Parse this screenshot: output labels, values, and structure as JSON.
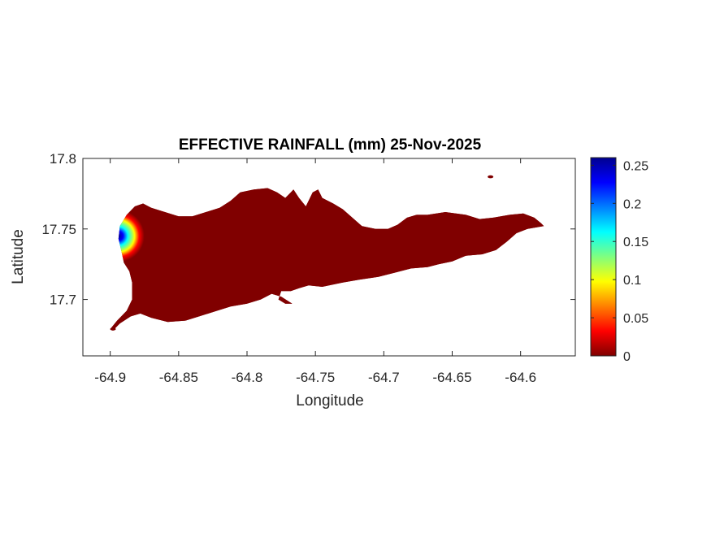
{
  "chart_data": {
    "type": "heatmap",
    "title": "EFFECTIVE RAINFALL (mm) 25-Nov-2025",
    "xlabel": "Longitude",
    "ylabel": "Latitude",
    "xlim": [
      -64.92,
      -64.56
    ],
    "ylim": [
      17.66,
      17.8
    ],
    "x_ticks": [
      {
        "value": -64.9,
        "label": "-64.9"
      },
      {
        "value": -64.85,
        "label": "-64.85"
      },
      {
        "value": -64.8,
        "label": "-64.8"
      },
      {
        "value": -64.75,
        "label": "-64.75"
      },
      {
        "value": -64.7,
        "label": "-64.7"
      },
      {
        "value": -64.65,
        "label": "-64.65"
      },
      {
        "value": -64.6,
        "label": "-64.6"
      }
    ],
    "y_ticks": [
      {
        "value": 17.7,
        "label": "17.7"
      },
      {
        "value": 17.75,
        "label": "17.75"
      },
      {
        "value": 17.8,
        "label": "17.8"
      }
    ],
    "colorbar": {
      "colormap": "jet",
      "range": [
        0,
        0.26
      ],
      "ticks": [
        {
          "value": 0,
          "label": "0"
        },
        {
          "value": 0.05,
          "label": "0.05"
        },
        {
          "value": 0.1,
          "label": "0.1"
        },
        {
          "value": 0.15,
          "label": "0.15"
        },
        {
          "value": 0.2,
          "label": "0.2"
        },
        {
          "value": 0.25,
          "label": "0.25"
        }
      ]
    },
    "field": {
      "background_value": 0,
      "peak_value": 0.26,
      "peak_location": [
        -64.894,
        17.745
      ]
    },
    "island_outline": [
      [
        -64.9,
        17.679
      ],
      [
        -64.895,
        17.685
      ],
      [
        -64.888,
        17.692
      ],
      [
        -64.884,
        17.7
      ],
      [
        -64.884,
        17.712
      ],
      [
        -64.886,
        17.72
      ],
      [
        -64.89,
        17.726
      ],
      [
        -64.892,
        17.735
      ],
      [
        -64.894,
        17.743
      ],
      [
        -64.893,
        17.752
      ],
      [
        -64.888,
        17.76
      ],
      [
        -64.882,
        17.766
      ],
      [
        -64.876,
        17.768
      ],
      [
        -64.87,
        17.765
      ],
      [
        -64.86,
        17.762
      ],
      [
        -64.85,
        17.759
      ],
      [
        -64.84,
        17.759
      ],
      [
        -64.83,
        17.762
      ],
      [
        -64.82,
        17.765
      ],
      [
        -64.812,
        17.77
      ],
      [
        -64.805,
        17.776
      ],
      [
        -64.795,
        17.778
      ],
      [
        -64.785,
        17.779
      ],
      [
        -64.778,
        17.776
      ],
      [
        -64.772,
        17.772
      ],
      [
        -64.768,
        17.776
      ],
      [
        -64.766,
        17.778
      ],
      [
        -64.762,
        17.772
      ],
      [
        -64.757,
        17.766
      ],
      [
        -64.752,
        17.776
      ],
      [
        -64.748,
        17.778
      ],
      [
        -64.745,
        17.772
      ],
      [
        -64.737,
        17.768
      ],
      [
        -64.73,
        17.764
      ],
      [
        -64.723,
        17.758
      ],
      [
        -64.716,
        17.752
      ],
      [
        -64.706,
        17.75
      ],
      [
        -64.697,
        17.75
      ],
      [
        -64.69,
        17.753
      ],
      [
        -64.683,
        17.758
      ],
      [
        -64.676,
        17.76
      ],
      [
        -64.668,
        17.76
      ],
      [
        -64.655,
        17.762
      ],
      [
        -64.64,
        17.76
      ],
      [
        -64.63,
        17.757
      ],
      [
        -64.62,
        17.758
      ],
      [
        -64.608,
        17.76
      ],
      [
        -64.598,
        17.761
      ],
      [
        -64.59,
        17.758
      ],
      [
        -64.585,
        17.754
      ],
      [
        -64.583,
        17.752
      ],
      [
        -64.595,
        17.75
      ],
      [
        -64.603,
        17.747
      ],
      [
        -64.61,
        17.741
      ],
      [
        -64.618,
        17.735
      ],
      [
        -64.628,
        17.732
      ],
      [
        -64.64,
        17.731
      ],
      [
        -64.65,
        17.727
      ],
      [
        -64.66,
        17.725
      ],
      [
        -64.668,
        17.723
      ],
      [
        -64.68,
        17.722
      ],
      [
        -64.692,
        17.719
      ],
      [
        -64.704,
        17.716
      ],
      [
        -64.718,
        17.714
      ],
      [
        -64.73,
        17.712
      ],
      [
        -64.745,
        17.709
      ],
      [
        -64.755,
        17.71
      ],
      [
        -64.762,
        17.708
      ],
      [
        -64.768,
        17.706
      ],
      [
        -64.775,
        17.706
      ],
      [
        -64.777,
        17.7
      ],
      [
        -64.772,
        17.697
      ],
      [
        -64.767,
        17.697
      ],
      [
        -64.775,
        17.702
      ],
      [
        -64.782,
        17.704
      ],
      [
        -64.79,
        17.7
      ],
      [
        -64.8,
        17.697
      ],
      [
        -64.812,
        17.695
      ],
      [
        -64.822,
        17.692
      ],
      [
        -64.835,
        17.688
      ],
      [
        -64.845,
        17.685
      ],
      [
        -64.858,
        17.684
      ],
      [
        -64.87,
        17.687
      ],
      [
        -64.878,
        17.69
      ],
      [
        -64.885,
        17.688
      ],
      [
        -64.893,
        17.683
      ],
      [
        -64.898,
        17.678
      ]
    ],
    "islets": [
      [
        -64.622,
        17.787
      ],
      [
        -64.898,
        17.679
      ]
    ]
  }
}
